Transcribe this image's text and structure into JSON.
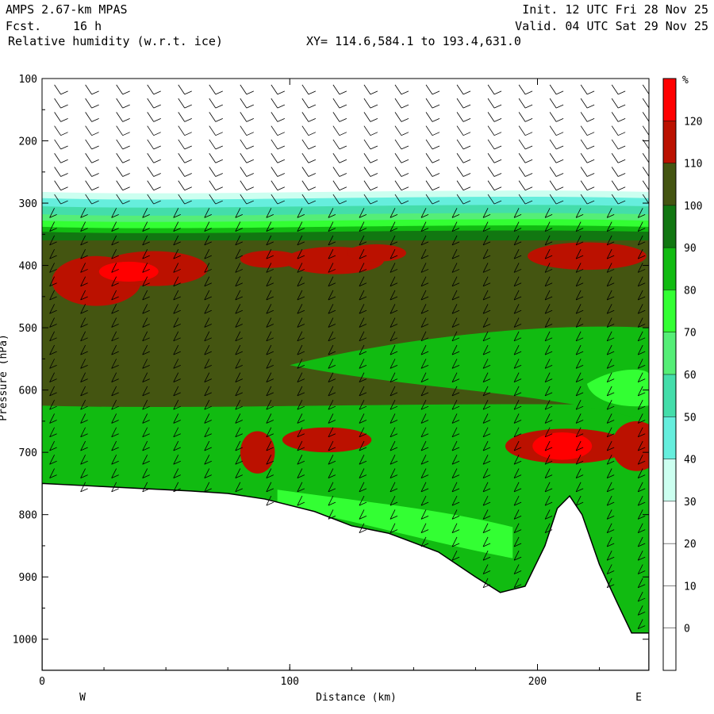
{
  "header": {
    "model": "AMPS 2.67-km MPAS",
    "fcst_label": "Fcst.",
    "fcst_value": "16 h",
    "field": "Relative humidity (w.r.t. ice)",
    "init": "Init. 12 UTC Fri 28 Nov 25",
    "valid": "Valid. 04 UTC Sat 29 Nov 25",
    "xy": "XY= 114.6,584.1 to 193.4,631.0"
  },
  "colors": {
    "c0_10": "#ffffff",
    "c10_20": "#ffffff",
    "c20_30": "#ffffff",
    "c30_40": "#ccfff0",
    "c40_50": "#66eedd",
    "c50_60": "#44ddaa",
    "c60_70": "#55ee77",
    "c70_80": "#33ff33",
    "c80_90": "#11bb11",
    "c90_100": "#117711",
    "c100_110": "#445511",
    "c110_120": "#bb1100",
    "c120_plus": "#ff0000"
  },
  "chart_data": {
    "type": "heatmap",
    "title": "Relative humidity (w.r.t. ice)",
    "xlabel": "Distance (km)",
    "ylabel": "Pressure (hPa)",
    "xlim": [
      0,
      245
    ],
    "ylim": [
      1050,
      100
    ],
    "x_ticks": [
      0,
      100,
      200
    ],
    "y_ticks": [
      100,
      200,
      300,
      400,
      500,
      600,
      700,
      800,
      900,
      1000
    ],
    "x_end_labels": {
      "left": "W",
      "right": "E"
    },
    "colorbar": {
      "unit": "%",
      "levels": [
        0,
        10,
        20,
        30,
        40,
        50,
        60,
        70,
        80,
        90,
        100,
        110,
        120
      ]
    },
    "terrain_pressure_hPa": [
      [
        0,
        750
      ],
      [
        20,
        754
      ],
      [
        40,
        758
      ],
      [
        60,
        762
      ],
      [
        75,
        766
      ],
      [
        90,
        775
      ],
      [
        110,
        795
      ],
      [
        125,
        818
      ],
      [
        140,
        830
      ],
      [
        160,
        860
      ],
      [
        175,
        900
      ],
      [
        185,
        925
      ],
      [
        195,
        915
      ],
      [
        203,
        850
      ],
      [
        208,
        790
      ],
      [
        213,
        770
      ],
      [
        218,
        800
      ],
      [
        225,
        880
      ],
      [
        232,
        940
      ],
      [
        238,
        990
      ],
      [
        245,
        990
      ]
    ]
  }
}
